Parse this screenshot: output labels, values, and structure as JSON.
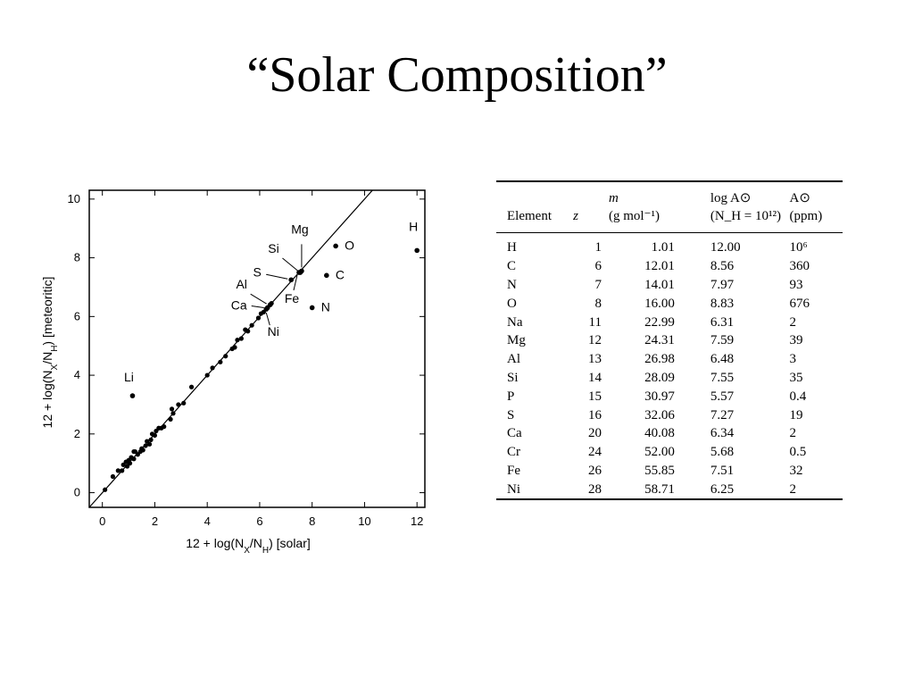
{
  "title": "“Solar Composition”",
  "chart_data": {
    "type": "scatter",
    "xlabel": "12 + log(N_X/N_H)  [solar]",
    "ylabel": "12 + log(N_X/N_H)  [meteoritic]",
    "xlim": [
      -0.5,
      12.3
    ],
    "ylim": [
      -0.5,
      10.3
    ],
    "xticks": [
      0,
      2,
      4,
      6,
      8,
      10,
      12
    ],
    "yticks": [
      0,
      2,
      4,
      6,
      8,
      10
    ],
    "reference_line": "y = x",
    "grid": false,
    "labeled_points": [
      {
        "label": "H",
        "x": 12.0,
        "y": 8.25
      },
      {
        "label": "O",
        "x": 8.9,
        "y": 8.4
      },
      {
        "label": "C",
        "x": 8.55,
        "y": 7.4
      },
      {
        "label": "N",
        "x": 8.0,
        "y": 6.3
      },
      {
        "label": "Mg",
        "x": 7.6,
        "y": 7.55
      },
      {
        "label": "Si",
        "x": 7.55,
        "y": 7.5
      },
      {
        "label": "Fe",
        "x": 7.5,
        "y": 7.5
      },
      {
        "label": "S",
        "x": 7.2,
        "y": 7.25
      },
      {
        "label": "Al",
        "x": 6.4,
        "y": 6.4
      },
      {
        "label": "Ca",
        "x": 6.3,
        "y": 6.3
      },
      {
        "label": "Ni",
        "x": 6.25,
        "y": 6.25
      },
      {
        "label": "Li",
        "x": 1.15,
        "y": 3.3
      }
    ],
    "points": [
      [
        0.1,
        0.1
      ],
      [
        0.4,
        0.55
      ],
      [
        0.6,
        0.75
      ],
      [
        0.75,
        0.75
      ],
      [
        0.8,
        0.95
      ],
      [
        0.9,
        1.05
      ],
      [
        0.95,
        0.9
      ],
      [
        1.0,
        1.1
      ],
      [
        1.05,
        1.0
      ],
      [
        1.1,
        1.2
      ],
      [
        1.2,
        1.15
      ],
      [
        1.25,
        1.4
      ],
      [
        1.35,
        1.3
      ],
      [
        1.45,
        1.4
      ],
      [
        1.5,
        1.5
      ],
      [
        1.55,
        1.45
      ],
      [
        1.65,
        1.6
      ],
      [
        1.7,
        1.75
      ],
      [
        1.8,
        1.65
      ],
      [
        1.85,
        1.8
      ],
      [
        1.9,
        2.0
      ],
      [
        2.0,
        1.95
      ],
      [
        2.05,
        2.1
      ],
      [
        2.15,
        2.2
      ],
      [
        2.25,
        2.2
      ],
      [
        2.35,
        2.25
      ],
      [
        2.6,
        2.5
      ],
      [
        2.65,
        2.85
      ],
      [
        2.7,
        2.7
      ],
      [
        2.9,
        3.0
      ],
      [
        3.1,
        3.05
      ],
      [
        3.4,
        3.6
      ],
      [
        4.0,
        4.0
      ],
      [
        4.2,
        4.25
      ],
      [
        4.5,
        4.45
      ],
      [
        4.7,
        4.65
      ],
      [
        4.95,
        4.9
      ],
      [
        5.05,
        4.95
      ],
      [
        5.15,
        5.2
      ],
      [
        5.3,
        5.25
      ],
      [
        5.45,
        5.55
      ],
      [
        5.55,
        5.5
      ],
      [
        5.7,
        5.7
      ],
      [
        5.95,
        5.95
      ],
      [
        6.05,
        6.1
      ],
      [
        6.15,
        6.15
      ],
      [
        6.3,
        6.3
      ],
      [
        6.45,
        6.45
      ],
      [
        1.2,
        1.4
      ]
    ]
  },
  "table": {
    "headers": {
      "element": "Element",
      "z": "z",
      "m_top": "m",
      "m_bottom": "(g mol⁻¹)",
      "log_top": "log A⊙",
      "log_bottom": "(N_H = 10¹²)",
      "ppm_top": "A⊙",
      "ppm_bottom": "(ppm)"
    },
    "rows": [
      {
        "element": "H",
        "z": "1",
        "m": "1.01",
        "log": "12.00",
        "ppm": "10⁶"
      },
      {
        "element": "C",
        "z": "6",
        "m": "12.01",
        "log": "8.56",
        "ppm": "360"
      },
      {
        "element": "N",
        "z": "7",
        "m": "14.01",
        "log": "7.97",
        "ppm": "93"
      },
      {
        "element": "O",
        "z": "8",
        "m": "16.00",
        "log": "8.83",
        "ppm": "676"
      },
      {
        "element": "Na",
        "z": "11",
        "m": "22.99",
        "log": "6.31",
        "ppm": "2"
      },
      {
        "element": "Mg",
        "z": "12",
        "m": "24.31",
        "log": "7.59",
        "ppm": "39"
      },
      {
        "element": "Al",
        "z": "13",
        "m": "26.98",
        "log": "6.48",
        "ppm": "3"
      },
      {
        "element": "Si",
        "z": "14",
        "m": "28.09",
        "log": "7.55",
        "ppm": "35"
      },
      {
        "element": "P",
        "z": "15",
        "m": "30.97",
        "log": "5.57",
        "ppm": "0.4"
      },
      {
        "element": "S",
        "z": "16",
        "m": "32.06",
        "log": "7.27",
        "ppm": "19"
      },
      {
        "element": "Ca",
        "z": "20",
        "m": "40.08",
        "log": "6.34",
        "ppm": "2"
      },
      {
        "element": "Cr",
        "z": "24",
        "m": "52.00",
        "log": "5.68",
        "ppm": "0.5"
      },
      {
        "element": "Fe",
        "z": "26",
        "m": "55.85",
        "log": "7.51",
        "ppm": "32"
      },
      {
        "element": "Ni",
        "z": "28",
        "m": "58.71",
        "log": "6.25",
        "ppm": "2"
      }
    ]
  }
}
